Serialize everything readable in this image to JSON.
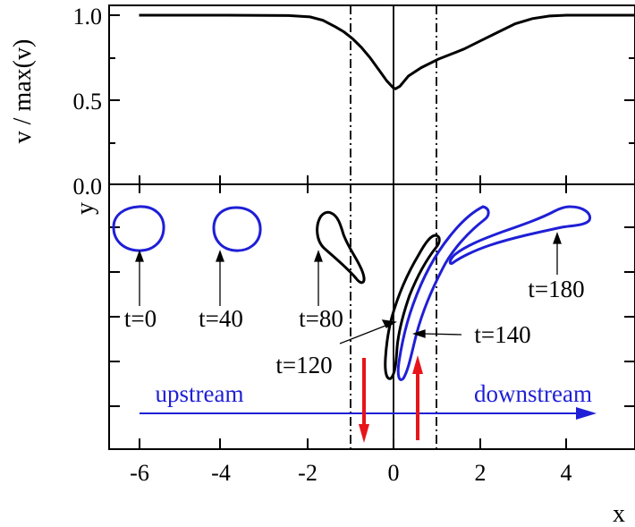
{
  "chart_data": [
    {
      "type": "line",
      "panel": "top",
      "ylabel": "v / max(v)",
      "ylim": [
        0.0,
        1.0
      ],
      "xlim": [
        -6.7,
        5.6
      ],
      "yticks": [
        "0.0",
        "0.5",
        "1.0"
      ],
      "grid": false,
      "series": [
        {
          "color": "#000000",
          "points": [
            [
              -6.0,
              1.0
            ],
            [
              -4.0,
              1.0
            ],
            [
              -2.5,
              0.998
            ],
            [
              -2.0,
              0.99
            ],
            [
              -1.7,
              0.97
            ],
            [
              -1.4,
              0.93
            ],
            [
              -1.2,
              0.9
            ],
            [
              -1.0,
              0.86
            ],
            [
              -0.8,
              0.81
            ],
            [
              -0.6,
              0.75
            ],
            [
              -0.4,
              0.68
            ],
            [
              -0.2,
              0.61
            ],
            [
              -0.05,
              0.57
            ],
            [
              0.0,
              0.565
            ],
            [
              0.1,
              0.58
            ],
            [
              0.3,
              0.64
            ],
            [
              0.6,
              0.69
            ],
            [
              1.0,
              0.74
            ],
            [
              1.3,
              0.77
            ],
            [
              1.6,
              0.8
            ],
            [
              2.0,
              0.85
            ],
            [
              2.4,
              0.9
            ],
            [
              2.8,
              0.95
            ],
            [
              3.2,
              0.98
            ],
            [
              3.6,
              0.995
            ],
            [
              4.0,
              1.0
            ],
            [
              5.6,
              1.0
            ]
          ]
        }
      ],
      "vertical_lines": [
        {
          "x": -1.0,
          "style": "dash-dot"
        },
        {
          "x": 0.0,
          "style": "solid"
        },
        {
          "x": 1.0,
          "style": "dash-dot"
        }
      ]
    },
    {
      "type": "line",
      "panel": "bottom",
      "xlabel": "x",
      "ylabel": "y",
      "xlim": [
        -6.7,
        5.6
      ],
      "xticks": [
        "-6",
        "-4",
        "-2",
        "0",
        "2",
        "4"
      ],
      "grid": false,
      "annotations": [
        "t=0",
        "t=40",
        "t=80",
        "t=120",
        "t=140",
        "t=180",
        "upstream",
        "downstream"
      ],
      "colors": {
        "blue": "#1f1fd6",
        "black": "#000000",
        "red": "#e8141b"
      }
    }
  ]
}
